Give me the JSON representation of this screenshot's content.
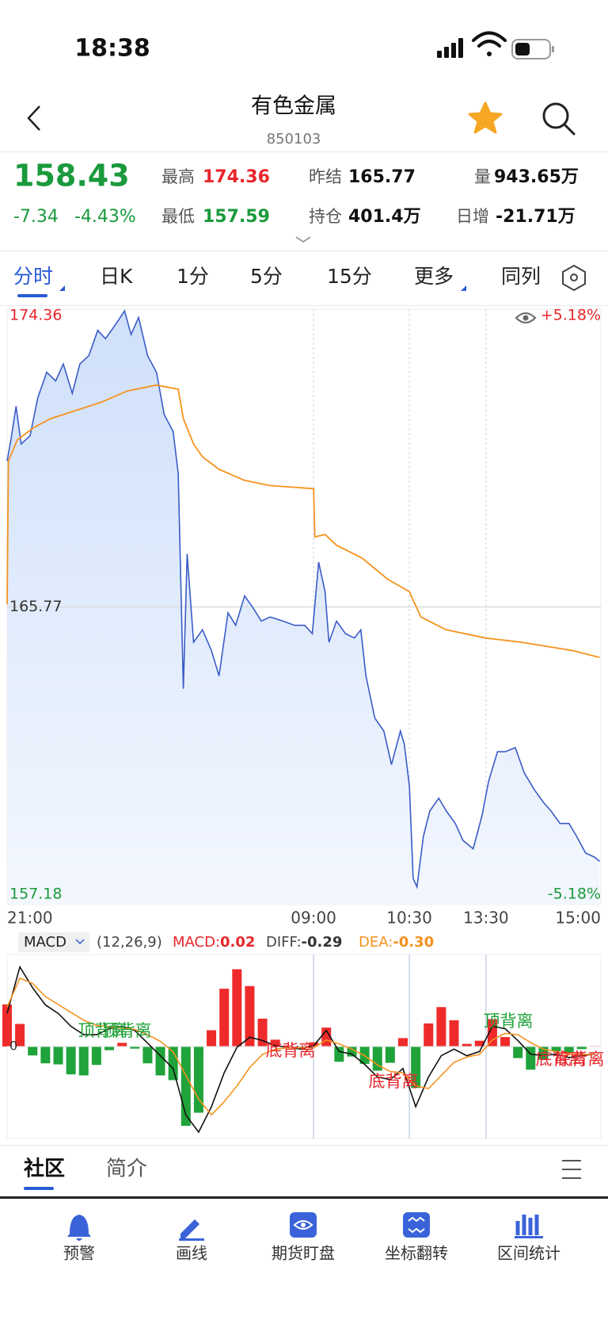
{
  "status_bar": {
    "time": "18:38"
  },
  "header": {
    "title": "有色金属",
    "code": "850103"
  },
  "quote": {
    "price": "158.43",
    "change": "-7.34",
    "change_pct": "-4.43%",
    "stats": [
      {
        "label": "最高",
        "value": "174.36"
      },
      {
        "label": "最低",
        "value": "157.59"
      },
      {
        "label": "昨结",
        "value": "165.77"
      },
      {
        "label": "持仓",
        "value": "401.4万"
      },
      {
        "label": "量",
        "value": "943.65万"
      },
      {
        "label": "日增",
        "value": "-21.71万"
      }
    ]
  },
  "tabs": [
    "分时",
    "日K",
    "1分",
    "5分",
    "15分",
    "更多",
    "同列"
  ],
  "chart_data": {
    "type": "line",
    "xlim": [
      0,
      465
    ],
    "xticks": [
      {
        "value": 0,
        "label": "21:00"
      },
      {
        "value": 240,
        "label": "09:00"
      },
      {
        "value": 315,
        "label": "10:30"
      },
      {
        "value": 375,
        "label": "13:30"
      },
      {
        "value": 465,
        "label": "15:00"
      }
    ],
    "ylim": [
      157.18,
      174.36
    ],
    "yticks": [
      157.18,
      165.77,
      174.36
    ],
    "pct_labels": [
      "+5.18%",
      "-5.18%"
    ],
    "series": [
      {
        "color": "#3a5cc6",
        "x": [
          0,
          3,
          7,
          11,
          18,
          24,
          31,
          38,
          44,
          51,
          57,
          64,
          71,
          77,
          84,
          92,
          97,
          103,
          110,
          117,
          123,
          130,
          134,
          138,
          141,
          146,
          153,
          160,
          166,
          173,
          179,
          186,
          193,
          199,
          206,
          216,
          225,
          233,
          239,
          244,
          249,
          252,
          258,
          265,
          272,
          277,
          281,
          288,
          295,
          301,
          308,
          311,
          315,
          318,
          321,
          326,
          331,
          338,
          344,
          351,
          357,
          365,
          372,
          377,
          384,
          390,
          398,
          405,
          413,
          420,
          426,
          433,
          440,
          446,
          453,
          460,
          464
        ],
        "values": [
          169.98,
          170.59,
          171.56,
          170.47,
          170.71,
          171.8,
          172.54,
          172.29,
          172.78,
          171.93,
          172.78,
          173.02,
          173.75,
          173.51,
          173.87,
          174.31,
          173.63,
          174.12,
          173.02,
          172.54,
          171.32,
          170.83,
          169.62,
          163.41,
          167.3,
          164.75,
          165.11,
          164.51,
          163.78,
          165.6,
          165.24,
          166.09,
          165.72,
          165.36,
          165.48,
          165.36,
          165.24,
          165.24,
          165.0,
          167.06,
          166.21,
          164.75,
          165.36,
          165.0,
          164.87,
          165.11,
          163.78,
          162.56,
          162.19,
          161.22,
          162.19,
          161.82,
          160.61,
          157.93,
          157.69,
          159.15,
          159.88,
          160.25,
          159.88,
          159.52,
          159.03,
          158.79,
          159.76,
          160.73,
          161.59,
          161.59,
          161.71,
          160.98,
          160.49,
          160.13,
          159.88,
          159.52,
          159.52,
          159.15,
          158.67,
          158.55,
          158.43
        ]
      },
      {
        "color": "#f5921e",
        "x": [
          0,
          1,
          8,
          21,
          34,
          54,
          74,
          94,
          117,
          134,
          138,
          146,
          153,
          166,
          186,
          206,
          240,
          241,
          249,
          258,
          278,
          298,
          315,
          324,
          344,
          375,
          403,
          443,
          464
        ],
        "values": [
          165.84,
          169.98,
          170.59,
          170.95,
          171.2,
          171.44,
          171.68,
          172.0,
          172.17,
          172.05,
          171.2,
          170.47,
          170.1,
          169.74,
          169.42,
          169.27,
          169.18,
          167.79,
          167.86,
          167.55,
          167.18,
          166.57,
          166.21,
          165.48,
          165.11,
          164.87,
          164.75,
          164.51,
          164.31
        ]
      }
    ]
  },
  "macd": {
    "indicator": "MACD",
    "params": "(12,26,9)",
    "readouts": [
      {
        "label": "MACD:",
        "value": "0.02",
        "color": "#e8262b"
      },
      {
        "label": "DIFF:",
        "value": "-0.29",
        "color": "#333333"
      },
      {
        "label": "DEA:",
        "value": "-0.30",
        "color": "#f5921e"
      }
    ],
    "ylim": [
      -3.5,
      3.5
    ],
    "yticks": [
      0
    ],
    "up_color": "#ee2a2a",
    "down_color": "#1fa33a",
    "x": [
      0,
      10,
      20,
      30,
      40,
      50,
      60,
      70,
      80,
      90,
      100,
      110,
      120,
      130,
      140,
      150,
      160,
      170,
      180,
      190,
      200,
      210,
      220,
      230,
      240,
      250,
      260,
      270,
      280,
      290,
      300,
      310,
      320,
      330,
      340,
      350,
      360,
      370,
      380,
      390,
      400,
      410,
      420,
      430,
      440,
      450,
      460
    ],
    "diff": {
      "color": "#111111",
      "values": [
        1.26,
        3.03,
        2.23,
        1.58,
        1.26,
        0.77,
        0.45,
        0.45,
        0.68,
        0.77,
        0.61,
        0.13,
        -0.35,
        -0.84,
        -2.61,
        -3.26,
        -2.29,
        -1.0,
        -0.03,
        0.35,
        0.23,
        0.03,
        -0.03,
        -0.1,
        0.03,
        0.61,
        -0.19,
        -0.29,
        -0.68,
        -1.16,
        -1.26,
        -0.84,
        -2.29,
        -1.16,
        -0.35,
        -0.1,
        -0.35,
        -0.19,
        0.77,
        0.68,
        0.23,
        -0.29,
        -0.35,
        -0.29,
        -0.42,
        -0.35,
        -0.29
      ]
    },
    "dea": {
      "color": "#f5921e",
      "values": [
        1.5,
        2.6,
        2.4,
        1.9,
        1.6,
        1.3,
        1.0,
        0.8,
        0.75,
        0.7,
        0.65,
        0.45,
        0.2,
        -0.2,
        -1.1,
        -2.0,
        -2.6,
        -2.1,
        -1.5,
        -0.8,
        -0.3,
        -0.1,
        -0.05,
        -0.05,
        -0.05,
        0.25,
        0.1,
        -0.1,
        -0.35,
        -0.7,
        -0.95,
        -1.0,
        -1.5,
        -1.6,
        -1.1,
        -0.6,
        -0.4,
        -0.3,
        0.25,
        0.5,
        0.45,
        0.15,
        -0.1,
        -0.2,
        -0.3,
        -0.3,
        -0.3
      ]
    },
    "hist": [
      1.6,
      0.86,
      -0.34,
      -0.64,
      -0.68,
      -1.06,
      -1.1,
      -0.7,
      -0.14,
      0.14,
      -0.08,
      -0.64,
      -1.1,
      -1.28,
      -3.02,
      -2.52,
      0.62,
      2.2,
      2.94,
      2.3,
      1.06,
      0.26,
      0.04,
      -0.1,
      0.16,
      0.72,
      -0.58,
      -0.38,
      -0.66,
      -0.92,
      -0.62,
      0.32,
      -1.58,
      0.88,
      1.5,
      1.0,
      0.1,
      0.22,
      1.04,
      0.36,
      -0.44,
      -0.88,
      -0.5,
      -0.18,
      -0.24,
      -0.1,
      0.02
    ],
    "annotations": [
      {
        "text": "顶背离",
        "color": "#1fa33a"
      },
      {
        "text": "顶背离",
        "color": "#1fa33a"
      },
      {
        "text": "底背离",
        "color": "#e8262b"
      },
      {
        "text": "底背离",
        "color": "#e8262b"
      },
      {
        "text": "顶背离",
        "color": "#1fa33a"
      },
      {
        "text": "底背离",
        "color": "#e8262b"
      },
      {
        "text": "底背离",
        "color": "#e8262b"
      }
    ]
  },
  "bottom_tabs": [
    "社区",
    "简介"
  ],
  "toolbar": [
    "预警",
    "画线",
    "期货盯盘",
    "坐标翻转",
    "区间统计"
  ]
}
